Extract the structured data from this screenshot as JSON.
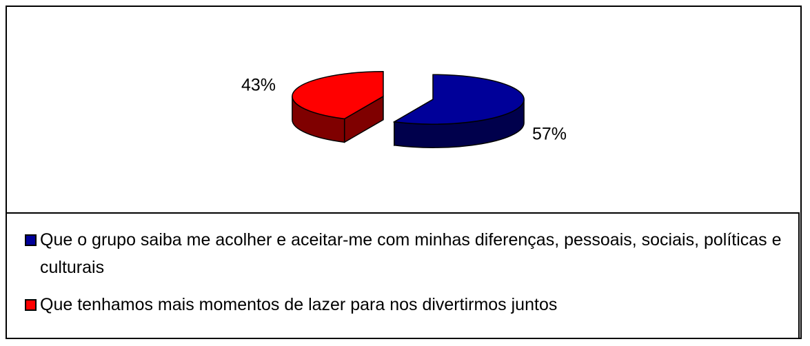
{
  "chart_data": {
    "type": "pie",
    "categories": [
      "Que o grupo saiba me acolher e aceitar-me com minhas diferenças, pessoais, sociais, políticas e culturais",
      "Que tenhamos mais momentos de lazer para nos divertirmos juntos"
    ],
    "values": [
      57,
      43
    ],
    "value_labels": [
      "57%",
      "43%"
    ],
    "colors": [
      "#000099",
      "#ff0000"
    ],
    "legend": "bottom"
  }
}
